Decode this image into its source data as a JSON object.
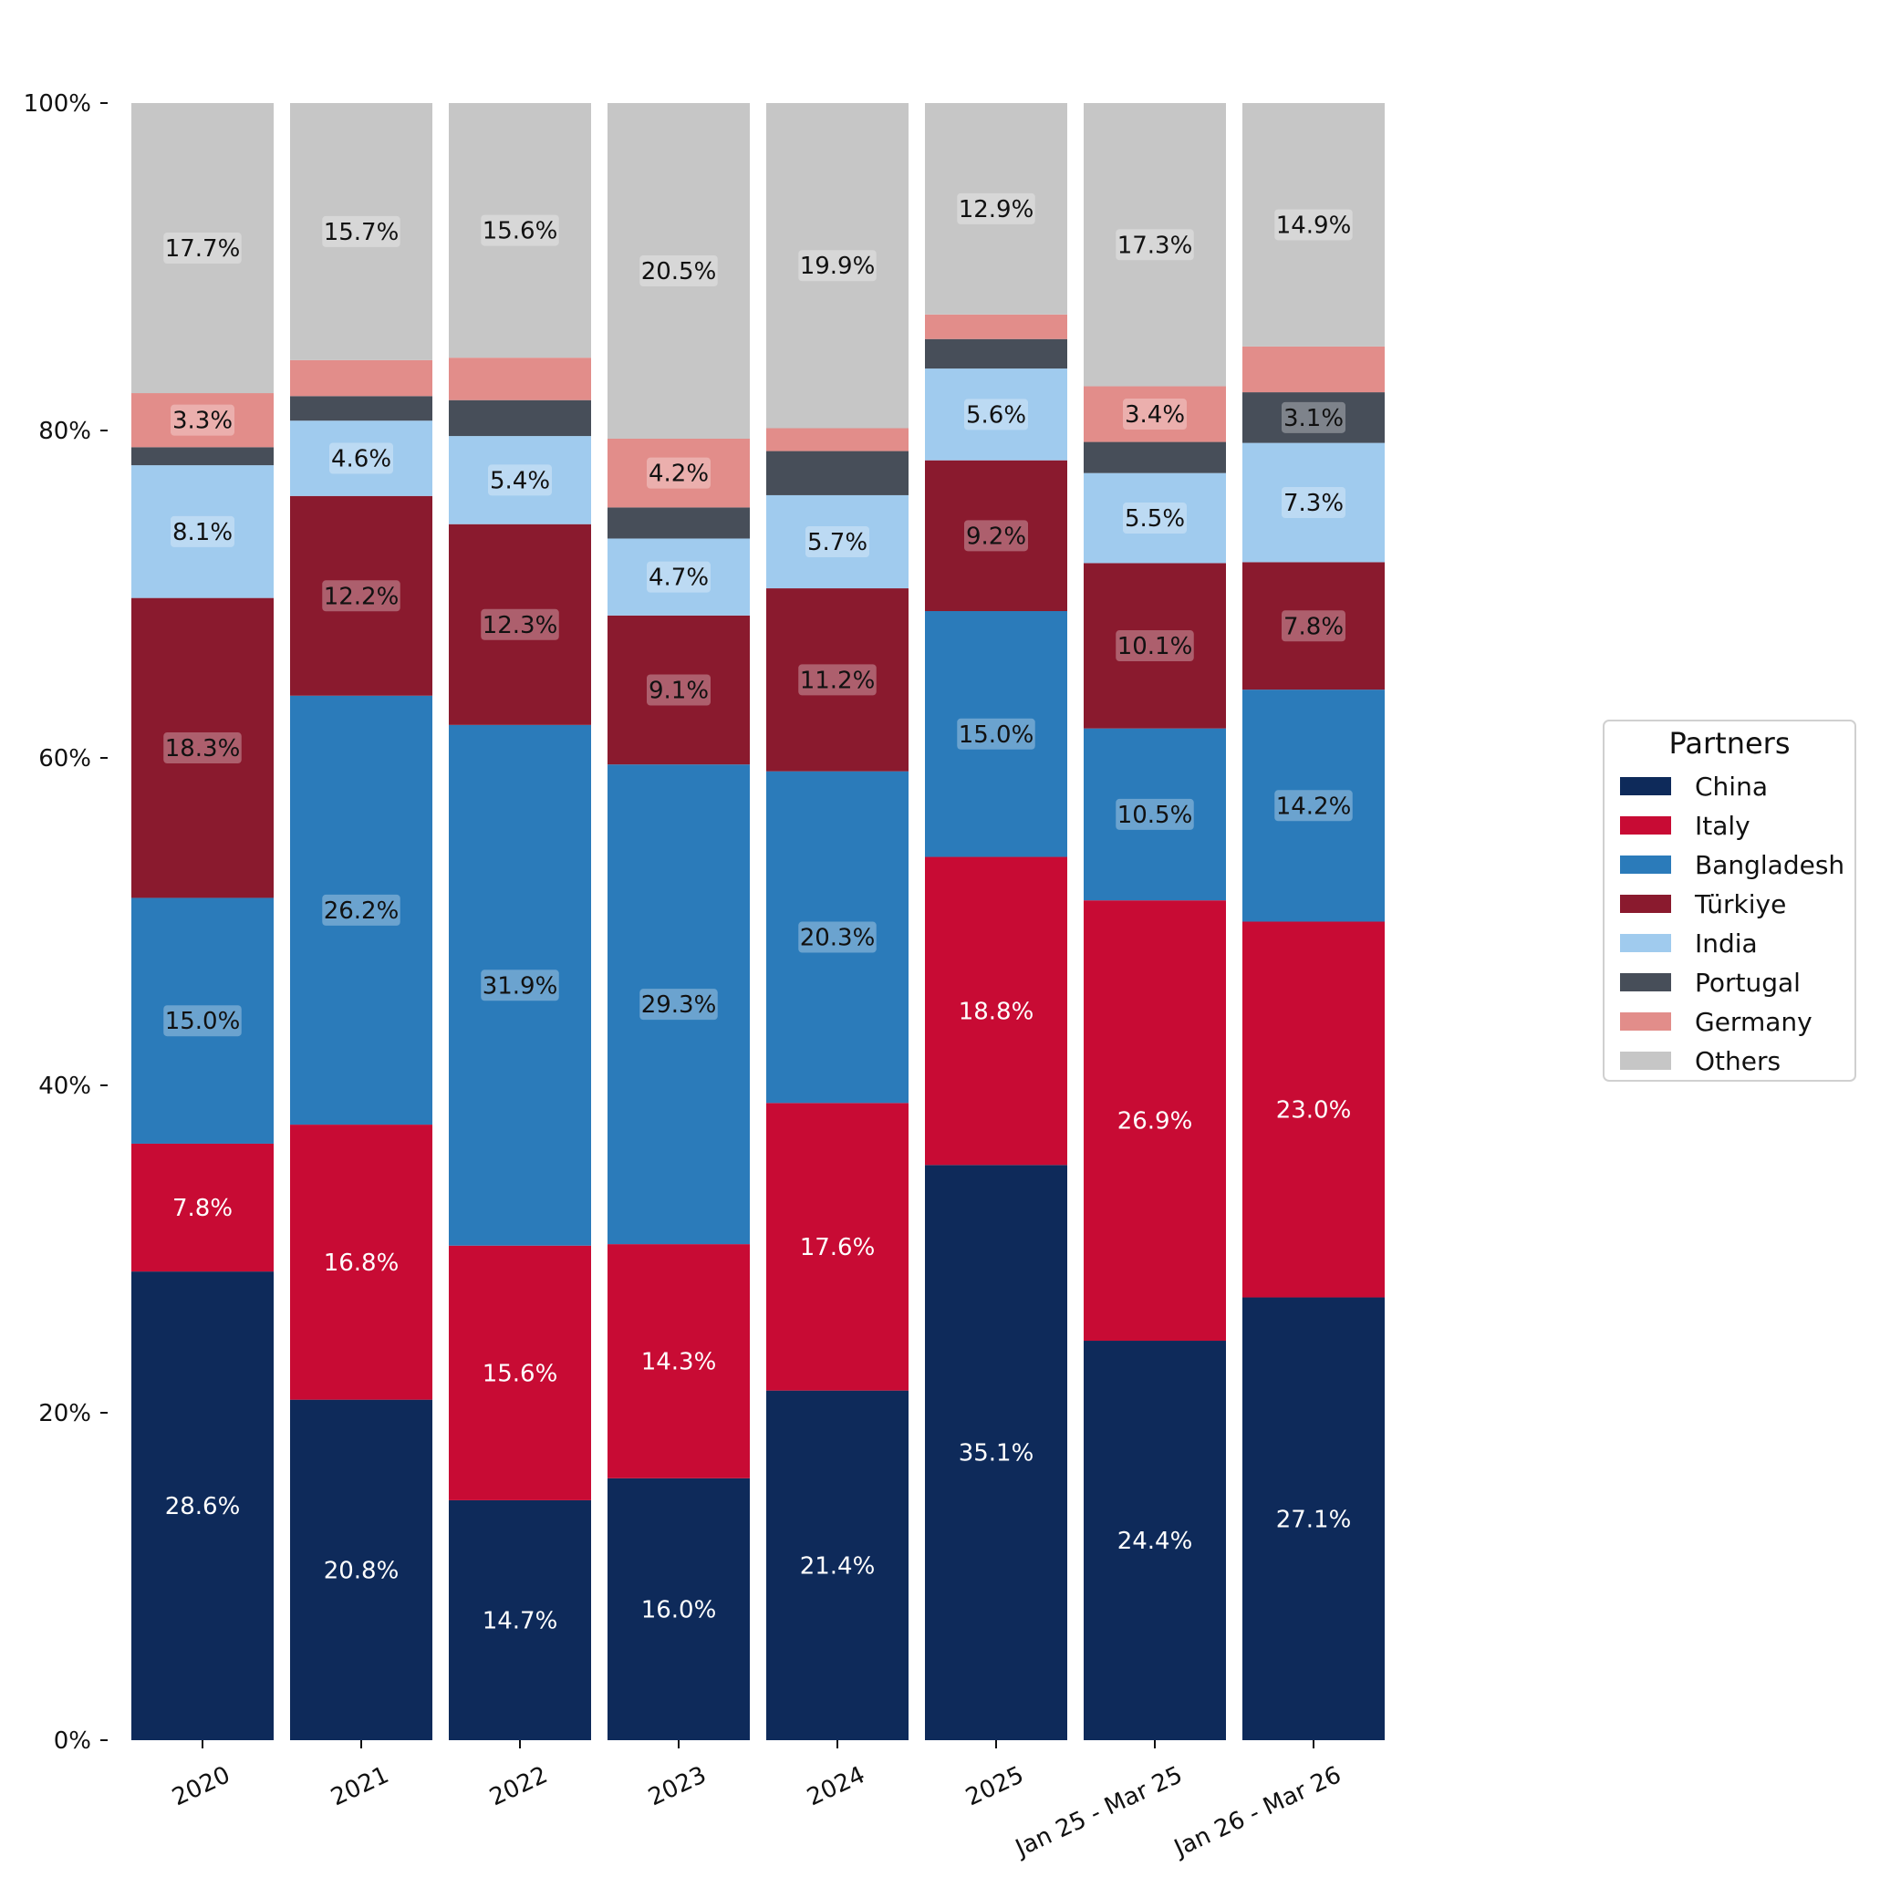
{
  "chart_data": {
    "type": "bar",
    "stacked": true,
    "normalized_percent": true,
    "title": "",
    "xlabel": "",
    "ylabel": "",
    "ylim": [
      0,
      100
    ],
    "y_ticks": [
      "0%",
      "20%",
      "40%",
      "60%",
      "80%",
      "100%"
    ],
    "grid": false,
    "legend_title": "Partners",
    "legend_position": "center-right",
    "categories": [
      "2020",
      "2021",
      "2022",
      "2023",
      "2024",
      "2025",
      "Jan 25 - Mar 25",
      "Jan 26 - Mar 26"
    ],
    "series": [
      {
        "name": "China",
        "color": "#0e2a5a",
        "label_color": "#ffffff",
        "values": [
          28.6,
          20.8,
          14.7,
          16.0,
          21.4,
          35.1,
          24.4,
          27.1
        ],
        "labels": [
          "28.6%",
          "20.8%",
          "14.7%",
          "16.0%",
          "21.4%",
          "35.1%",
          "24.4%",
          "27.1%"
        ]
      },
      {
        "name": "Italy",
        "color": "#c80b34",
        "label_color": "#ffffff",
        "values": [
          7.8,
          16.8,
          15.6,
          14.3,
          17.6,
          18.8,
          26.9,
          23.0
        ],
        "labels": [
          "7.8%",
          "16.8%",
          "15.6%",
          "14.3%",
          "17.6%",
          "18.8%",
          "26.9%",
          "23.0%"
        ]
      },
      {
        "name": "Bangladesh",
        "color": "#2b7bba",
        "label_color": "#111111",
        "values": [
          15.0,
          26.2,
          31.9,
          29.3,
          20.3,
          15.0,
          10.5,
          14.2
        ],
        "labels": [
          "15.0%",
          "26.2%",
          "31.9%",
          "29.3%",
          "20.3%",
          "15.0%",
          "10.5%",
          "14.2%"
        ]
      },
      {
        "name": "Türkiye",
        "color": "#8a1a2e",
        "label_color": "#111111",
        "values": [
          18.3,
          12.2,
          12.3,
          9.1,
          11.2,
          9.2,
          10.1,
          7.8
        ],
        "labels": [
          "18.3%",
          "12.2%",
          "12.3%",
          "9.1%",
          "11.2%",
          "9.2%",
          "10.1%",
          "7.8%"
        ]
      },
      {
        "name": "India",
        "color": "#a0cbee",
        "label_color": "#111111",
        "values": [
          8.1,
          4.6,
          5.4,
          4.7,
          5.7,
          5.6,
          5.5,
          7.3
        ],
        "labels": [
          "8.1%",
          "4.6%",
          "5.4%",
          "4.7%",
          "5.7%",
          "5.6%",
          "5.5%",
          "7.3%"
        ]
      },
      {
        "name": "Portugal",
        "color": "#474e59",
        "label_color": "#111111",
        "values": [
          1.1,
          1.5,
          2.2,
          1.9,
          2.7,
          1.8,
          1.9,
          3.1
        ],
        "labels": [
          "",
          "",
          "",
          "",
          "",
          "",
          "",
          "3.1%"
        ]
      },
      {
        "name": "Germany",
        "color": "#e28d8a",
        "label_color": "#111111",
        "values": [
          3.3,
          2.2,
          2.6,
          4.2,
          1.4,
          1.5,
          3.4,
          2.8
        ],
        "labels": [
          "3.3%",
          "",
          "",
          "4.2%",
          "",
          "",
          "3.4%",
          ""
        ]
      },
      {
        "name": "Others",
        "color": "#c6c6c6",
        "label_color": "#111111",
        "values": [
          17.7,
          15.7,
          15.6,
          20.5,
          19.9,
          12.9,
          17.3,
          14.9
        ],
        "labels": [
          "17.7%",
          "15.7%",
          "15.6%",
          "20.5%",
          "19.9%",
          "12.9%",
          "17.3%",
          "14.9%"
        ]
      }
    ]
  }
}
